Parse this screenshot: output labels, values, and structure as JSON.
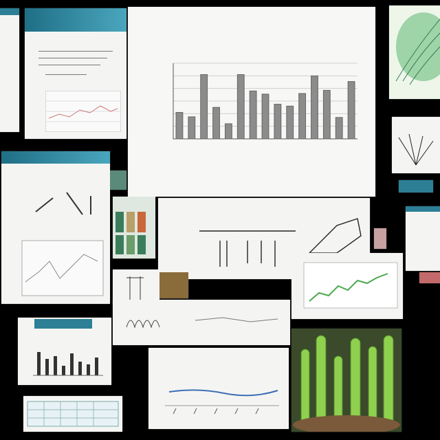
{
  "collage": {
    "main_chart": {
      "title": "",
      "chart_data": {
        "type": "bar",
        "categories": [
          "",
          "",
          "",
          "",
          "",
          "",
          "",
          "",
          "",
          "",
          "",
          "",
          "",
          "",
          ""
        ],
        "values": [
          4.2,
          3.5,
          10.2,
          5.0,
          2.4,
          10.2,
          7.6,
          7.1,
          5.5,
          5.2,
          7.2,
          10.0,
          7.7,
          3.4,
          9.1
        ],
        "ylim": [
          0,
          12
        ],
        "grid": true,
        "color": "#8c8c8c"
      }
    },
    "bottom_chart": {
      "title": ""
    },
    "colors": {
      "background": "#000000",
      "panel": "#f4f5f3",
      "header_teal": "#2c7f95",
      "plant_green": "#8fd14f",
      "line_blue": "#3d6fb3",
      "line_green": "#4aa84a"
    }
  }
}
